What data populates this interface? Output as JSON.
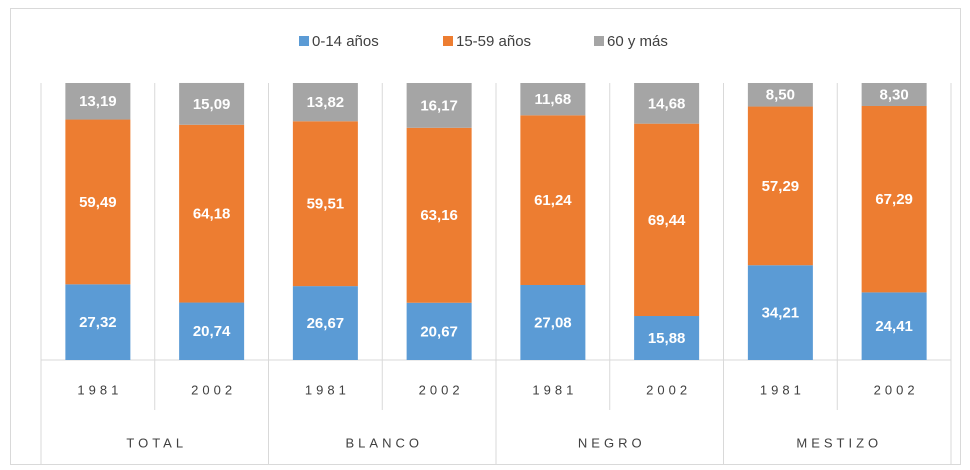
{
  "chart_data": {
    "type": "stacked_bar",
    "groups": [
      "TOTAL",
      "BLANCO",
      "NEGRO",
      "MESTIZO"
    ],
    "categories": [
      "1981",
      "2002",
      "1981",
      "2002",
      "1981",
      "2002",
      "1981",
      "2002"
    ],
    "series": [
      {
        "name": "0-14 años",
        "color": "#5b9bd5",
        "values": [
          27.32,
          20.74,
          26.67,
          20.67,
          27.08,
          15.88,
          34.21,
          24.41
        ],
        "value_labels": [
          "27,32",
          "20,74",
          "26,67",
          "20,67",
          "27,08",
          "15,88",
          "34,21",
          "24,41"
        ]
      },
      {
        "name": "15-59 años",
        "color": "#ed7d31",
        "values": [
          59.49,
          64.18,
          59.51,
          63.16,
          61.24,
          69.44,
          57.29,
          67.29
        ],
        "value_labels": [
          "59,49",
          "64,18",
          "59,51",
          "63,16",
          "61,24",
          "69,44",
          "57,29",
          "67,29"
        ]
      },
      {
        "name": "60 y más",
        "color": "#a5a5a5",
        "values": [
          13.19,
          15.09,
          13.82,
          16.17,
          11.68,
          14.68,
          8.5,
          8.3
        ],
        "value_labels": [
          "13,19",
          "15,09",
          "13,82",
          "16,17",
          "11,68",
          "14,68",
          "8,50",
          "8,30"
        ]
      }
    ],
    "ylim": [
      0,
      100
    ],
    "legend": "top"
  }
}
